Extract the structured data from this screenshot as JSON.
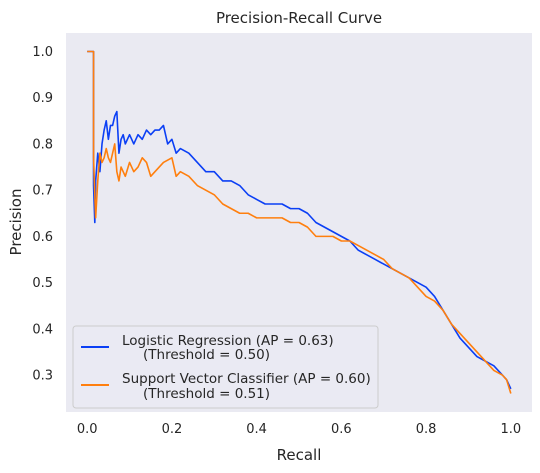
{
  "chart_data": {
    "type": "line",
    "title": "Precision-Recall Curve",
    "xlabel": "Recall",
    "ylabel": "Precision",
    "xlim": [
      -0.05,
      1.05
    ],
    "ylim": [
      0.22,
      1.04
    ],
    "xticks": [
      0.0,
      0.2,
      0.4,
      0.6,
      0.8,
      1.0
    ],
    "xtick_labels": [
      "0.0",
      "0.2",
      "0.4",
      "0.6",
      "0.8",
      "1.0"
    ],
    "yticks": [
      0.3,
      0.4,
      0.5,
      0.6,
      0.7,
      0.8,
      0.9,
      1.0
    ],
    "ytick_labels": [
      "0.3",
      "0.4",
      "0.5",
      "0.6",
      "0.7",
      "0.8",
      "0.9",
      "1.0"
    ],
    "grid": false,
    "legend_position": "lower-left",
    "background": "#eaeaf2",
    "series": [
      {
        "name": "Logistic Regression (AP = 0.63)",
        "subtitle": "(Threshold = 0.50)",
        "color": "#0b3ff5",
        "points": [
          [
            0.0,
            1.0
          ],
          [
            0.015,
            1.0
          ],
          [
            0.015,
            0.71
          ],
          [
            0.018,
            0.63
          ],
          [
            0.02,
            0.72
          ],
          [
            0.025,
            0.78
          ],
          [
            0.03,
            0.74
          ],
          [
            0.035,
            0.8
          ],
          [
            0.04,
            0.83
          ],
          [
            0.045,
            0.85
          ],
          [
            0.05,
            0.81
          ],
          [
            0.055,
            0.84
          ],
          [
            0.06,
            0.84
          ],
          [
            0.065,
            0.86
          ],
          [
            0.07,
            0.87
          ],
          [
            0.075,
            0.78
          ],
          [
            0.08,
            0.81
          ],
          [
            0.085,
            0.82
          ],
          [
            0.09,
            0.8
          ],
          [
            0.1,
            0.82
          ],
          [
            0.11,
            0.8
          ],
          [
            0.12,
            0.82
          ],
          [
            0.13,
            0.81
          ],
          [
            0.14,
            0.83
          ],
          [
            0.15,
            0.82
          ],
          [
            0.16,
            0.83
          ],
          [
            0.17,
            0.83
          ],
          [
            0.18,
            0.84
          ],
          [
            0.19,
            0.8
          ],
          [
            0.2,
            0.81
          ],
          [
            0.21,
            0.78
          ],
          [
            0.22,
            0.79
          ],
          [
            0.24,
            0.78
          ],
          [
            0.26,
            0.76
          ],
          [
            0.28,
            0.74
          ],
          [
            0.3,
            0.74
          ],
          [
            0.32,
            0.72
          ],
          [
            0.34,
            0.72
          ],
          [
            0.36,
            0.71
          ],
          [
            0.38,
            0.69
          ],
          [
            0.4,
            0.68
          ],
          [
            0.42,
            0.67
          ],
          [
            0.44,
            0.67
          ],
          [
            0.46,
            0.67
          ],
          [
            0.48,
            0.66
          ],
          [
            0.5,
            0.66
          ],
          [
            0.52,
            0.65
          ],
          [
            0.54,
            0.63
          ],
          [
            0.56,
            0.62
          ],
          [
            0.58,
            0.61
          ],
          [
            0.6,
            0.6
          ],
          [
            0.62,
            0.59
          ],
          [
            0.64,
            0.57
          ],
          [
            0.66,
            0.56
          ],
          [
            0.68,
            0.55
          ],
          [
            0.7,
            0.54
          ],
          [
            0.72,
            0.53
          ],
          [
            0.74,
            0.52
          ],
          [
            0.76,
            0.51
          ],
          [
            0.78,
            0.5
          ],
          [
            0.8,
            0.49
          ],
          [
            0.82,
            0.47
          ],
          [
            0.84,
            0.44
          ],
          [
            0.86,
            0.41
          ],
          [
            0.88,
            0.38
          ],
          [
            0.9,
            0.36
          ],
          [
            0.92,
            0.34
          ],
          [
            0.94,
            0.33
          ],
          [
            0.96,
            0.32
          ],
          [
            0.98,
            0.3
          ],
          [
            0.99,
            0.29
          ],
          [
            1.0,
            0.27
          ]
        ]
      },
      {
        "name": "Support Vector Classifier (AP = 0.60)",
        "subtitle": "(Threshold = 0.51)",
        "color": "#ff7f0e",
        "points": [
          [
            0.0,
            1.0
          ],
          [
            0.015,
            1.0
          ],
          [
            0.015,
            0.77
          ],
          [
            0.02,
            0.64
          ],
          [
            0.025,
            0.72
          ],
          [
            0.03,
            0.78
          ],
          [
            0.035,
            0.76
          ],
          [
            0.04,
            0.77
          ],
          [
            0.045,
            0.79
          ],
          [
            0.05,
            0.77
          ],
          [
            0.055,
            0.76
          ],
          [
            0.06,
            0.78
          ],
          [
            0.065,
            0.8
          ],
          [
            0.07,
            0.74
          ],
          [
            0.075,
            0.72
          ],
          [
            0.08,
            0.75
          ],
          [
            0.09,
            0.73
          ],
          [
            0.1,
            0.76
          ],
          [
            0.11,
            0.74
          ],
          [
            0.12,
            0.75
          ],
          [
            0.13,
            0.77
          ],
          [
            0.14,
            0.76
          ],
          [
            0.15,
            0.73
          ],
          [
            0.16,
            0.74
          ],
          [
            0.17,
            0.75
          ],
          [
            0.18,
            0.76
          ],
          [
            0.2,
            0.77
          ],
          [
            0.21,
            0.73
          ],
          [
            0.22,
            0.74
          ],
          [
            0.24,
            0.73
          ],
          [
            0.26,
            0.71
          ],
          [
            0.28,
            0.7
          ],
          [
            0.3,
            0.69
          ],
          [
            0.32,
            0.67
          ],
          [
            0.34,
            0.66
          ],
          [
            0.36,
            0.65
          ],
          [
            0.38,
            0.65
          ],
          [
            0.4,
            0.64
          ],
          [
            0.42,
            0.64
          ],
          [
            0.44,
            0.64
          ],
          [
            0.46,
            0.64
          ],
          [
            0.48,
            0.63
          ],
          [
            0.5,
            0.63
          ],
          [
            0.52,
            0.62
          ],
          [
            0.54,
            0.6
          ],
          [
            0.56,
            0.6
          ],
          [
            0.58,
            0.6
          ],
          [
            0.6,
            0.59
          ],
          [
            0.62,
            0.59
          ],
          [
            0.64,
            0.58
          ],
          [
            0.66,
            0.57
          ],
          [
            0.68,
            0.56
          ],
          [
            0.7,
            0.55
          ],
          [
            0.72,
            0.53
          ],
          [
            0.74,
            0.52
          ],
          [
            0.76,
            0.51
          ],
          [
            0.78,
            0.49
          ],
          [
            0.8,
            0.47
          ],
          [
            0.82,
            0.46
          ],
          [
            0.84,
            0.44
          ],
          [
            0.86,
            0.41
          ],
          [
            0.88,
            0.39
          ],
          [
            0.9,
            0.37
          ],
          [
            0.92,
            0.35
          ],
          [
            0.94,
            0.33
          ],
          [
            0.96,
            0.31
          ],
          [
            0.98,
            0.3
          ],
          [
            0.99,
            0.29
          ],
          [
            1.0,
            0.26
          ]
        ]
      }
    ]
  }
}
